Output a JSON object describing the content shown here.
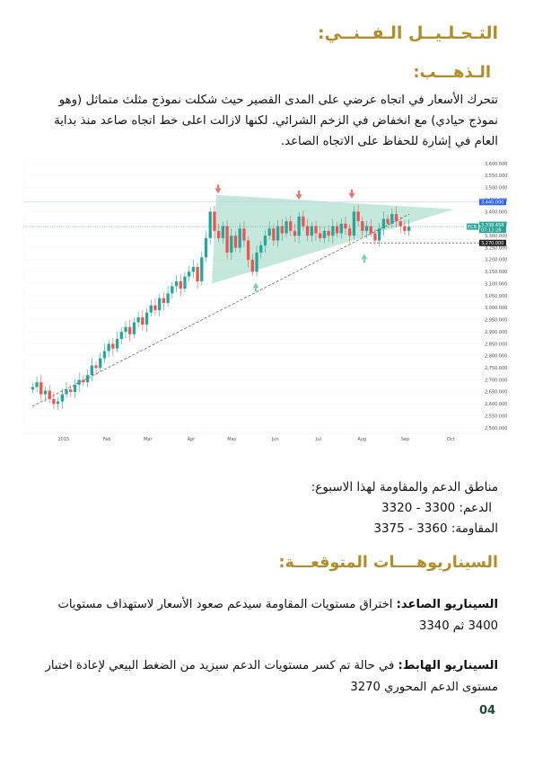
{
  "section_title": "التـحـلـيــل الـفــنــي:",
  "gold_title": "الـذهـــب:",
  "intro_text": "تتحرك الأسعار في اتجاه عرضي على المدى القصير حيث شكلت نموذج مثلث متماثل (وهو نموذج حيادي) مع انخفاض في الزخم الشرائي. لكنها لازالت اعلى خط اتجاه صاعد منذ بداية العام في إشارة للحفاظ على الاتجاه الصاعد.",
  "chart_data": {
    "type": "candlestick",
    "title": "",
    "x_tick_labels": [
      "2015",
      "Feb",
      "Mar",
      "Apr",
      "May",
      "Jun",
      "Jul",
      "Aug",
      "Sep",
      "Oct"
    ],
    "y_tick_labels": [
      "3,600.000",
      "3,550.000",
      "3,500.000",
      "3,450.000",
      "3,400.000",
      "3,350.000",
      "3,300.000",
      "3,250.000",
      "3,200.000",
      "3,150.000",
      "3,100.000",
      "3,050.000",
      "3,000.000",
      "2,950.000",
      "2,900.000",
      "2,850.000",
      "2,800.000",
      "2,750.000",
      "2,700.000",
      "2,650.000",
      "2,600.000",
      "2,550.000",
      "2,500.000"
    ],
    "ylim": [
      2500,
      3600
    ],
    "price_labels": {
      "upper": "3,440.000",
      "current": "3,338.458",
      "current_time": "07:12:28",
      "lower": "3,270.000"
    },
    "symbol_tag": "ECB 3",
    "approx_closes": [
      2670,
      2690,
      2640,
      2655,
      2620,
      2600,
      2610,
      2640,
      2660,
      2650,
      2680,
      2700,
      2690,
      2720,
      2760,
      2750,
      2790,
      2820,
      2850,
      2830,
      2870,
      2900,
      2920,
      2890,
      2940,
      2960,
      2930,
      2980,
      3010,
      2990,
      3040,
      3020,
      3060,
      3090,
      3110,
      3080,
      3130,
      3150,
      3170,
      3110,
      3210,
      3290,
      3400,
      3320,
      3290,
      3340,
      3230,
      3300,
      3250,
      3330,
      3280,
      3200,
      3150,
      3230,
      3260,
      3300,
      3330,
      3280,
      3340,
      3310,
      3360,
      3320,
      3300,
      3380,
      3340,
      3300,
      3340,
      3310,
      3290,
      3320,
      3300,
      3340,
      3310,
      3350,
      3330,
      3300,
      3400,
      3360,
      3320,
      3340,
      3310,
      3280,
      3330,
      3370,
      3350,
      3390,
      3360,
      3340,
      3320,
      3338
    ],
    "annotations": [
      "symmetrical-triangle",
      "ascending-trendline",
      "resistance-arrows-down",
      "support-arrows-up"
    ]
  },
  "zones_title": "مناطق الدعم والمقاومة لهذا الاسبوع:",
  "support_label": "الدعم:",
  "support_value": "3300 - 3320",
  "resistance_label": "المقاومة:",
  "resistance_value": "3360 - 3375",
  "scenarios_title": "السيناريوهــــات المتوقعـــة:",
  "bull_label": "السيناريو الصاعد:",
  "bull_text": "اختراق مستويات المقاومة سيدعم صعود الأسعار لاستهداف مستويات 3400 ثم 3340",
  "bear_label": "السيناريو الهابط:",
  "bear_text": "في حالة تم كسر مستويات الدعم سيزيد من الضغط البيعي لإعادة اختبار مستوى الدعم المحوري 3270",
  "page_number": "04",
  "colors": {
    "accent_gold": "#b08d2b",
    "bull_candle": "#26a69a",
    "bear_candle": "#ef5350",
    "triangle_fill": "#9fd9c6"
  }
}
